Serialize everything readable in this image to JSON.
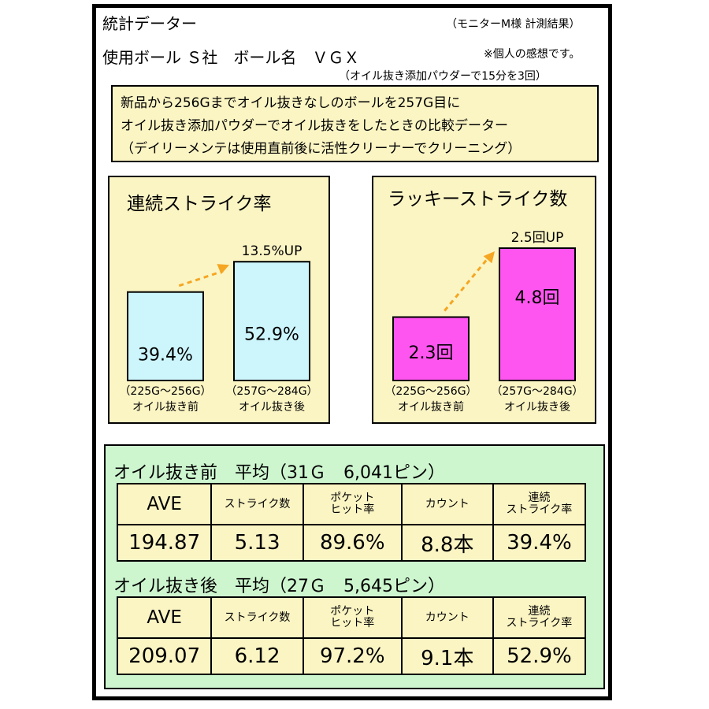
{
  "header": {
    "title": "統計データー",
    "monitor_note": "（モニターM様 計測結果）",
    "ball_line": "使用ボール Ｓ社　ボール名　ＶＧＸ",
    "personal_note": "※個人の感想です。",
    "method_note": "（オイル抜き添加パウダーで15分を3回）"
  },
  "info": {
    "lines": [
      "新品から256Gまでオイル抜きなしのボールを257G目に",
      "オイル抜き添加パウダーでオイル抜きをしたときの比較データー",
      "（デイリーメンテは使用直前後に活性クリーナーでクリーニング）"
    ]
  },
  "chart_data": [
    {
      "type": "bar",
      "title": "連続ストライク率",
      "categories": [
        "（225G～256G）\nオイル抜き前",
        "（257G～284G）\nオイル抜き後"
      ],
      "values": [
        39.4,
        52.9
      ],
      "value_labels": [
        "39.4%",
        "52.9%"
      ],
      "annotation": "13.5%UP",
      "bar_color": "#ccf5fc",
      "ylim": [
        0,
        60
      ]
    },
    {
      "type": "bar",
      "title": "ラッキーストライク数",
      "categories": [
        "（225G～256G）\nオイル抜き前",
        "（257G～284G）\nオイル抜き後"
      ],
      "values": [
        2.3,
        4.8
      ],
      "value_labels": [
        "2.3回",
        "4.8回"
      ],
      "annotation": "2.5回UP",
      "bar_color": "#ff55f0",
      "ylim": [
        0,
        5.4
      ]
    }
  ],
  "summary": {
    "before": {
      "title": "オイル抜き前　平均（31Ｇ　6,041ピン）",
      "headers": [
        "AVE",
        "ストライク数",
        "ポケット\nヒット率",
        "カウント",
        "連続\nストライク率"
      ],
      "values": [
        "194.87",
        "5.13",
        "89.6%",
        "8.8本",
        "39.4%"
      ]
    },
    "after": {
      "title": "オイル抜き後　平均（27Ｇ　5,645ピン）",
      "headers": [
        "AVE",
        "ストライク数",
        "ポケット\nヒット率",
        "カウント",
        "連続\nストライク率"
      ],
      "values": [
        "209.07",
        "6.12",
        "97.2%",
        "9.1本",
        "52.9%"
      ]
    }
  }
}
